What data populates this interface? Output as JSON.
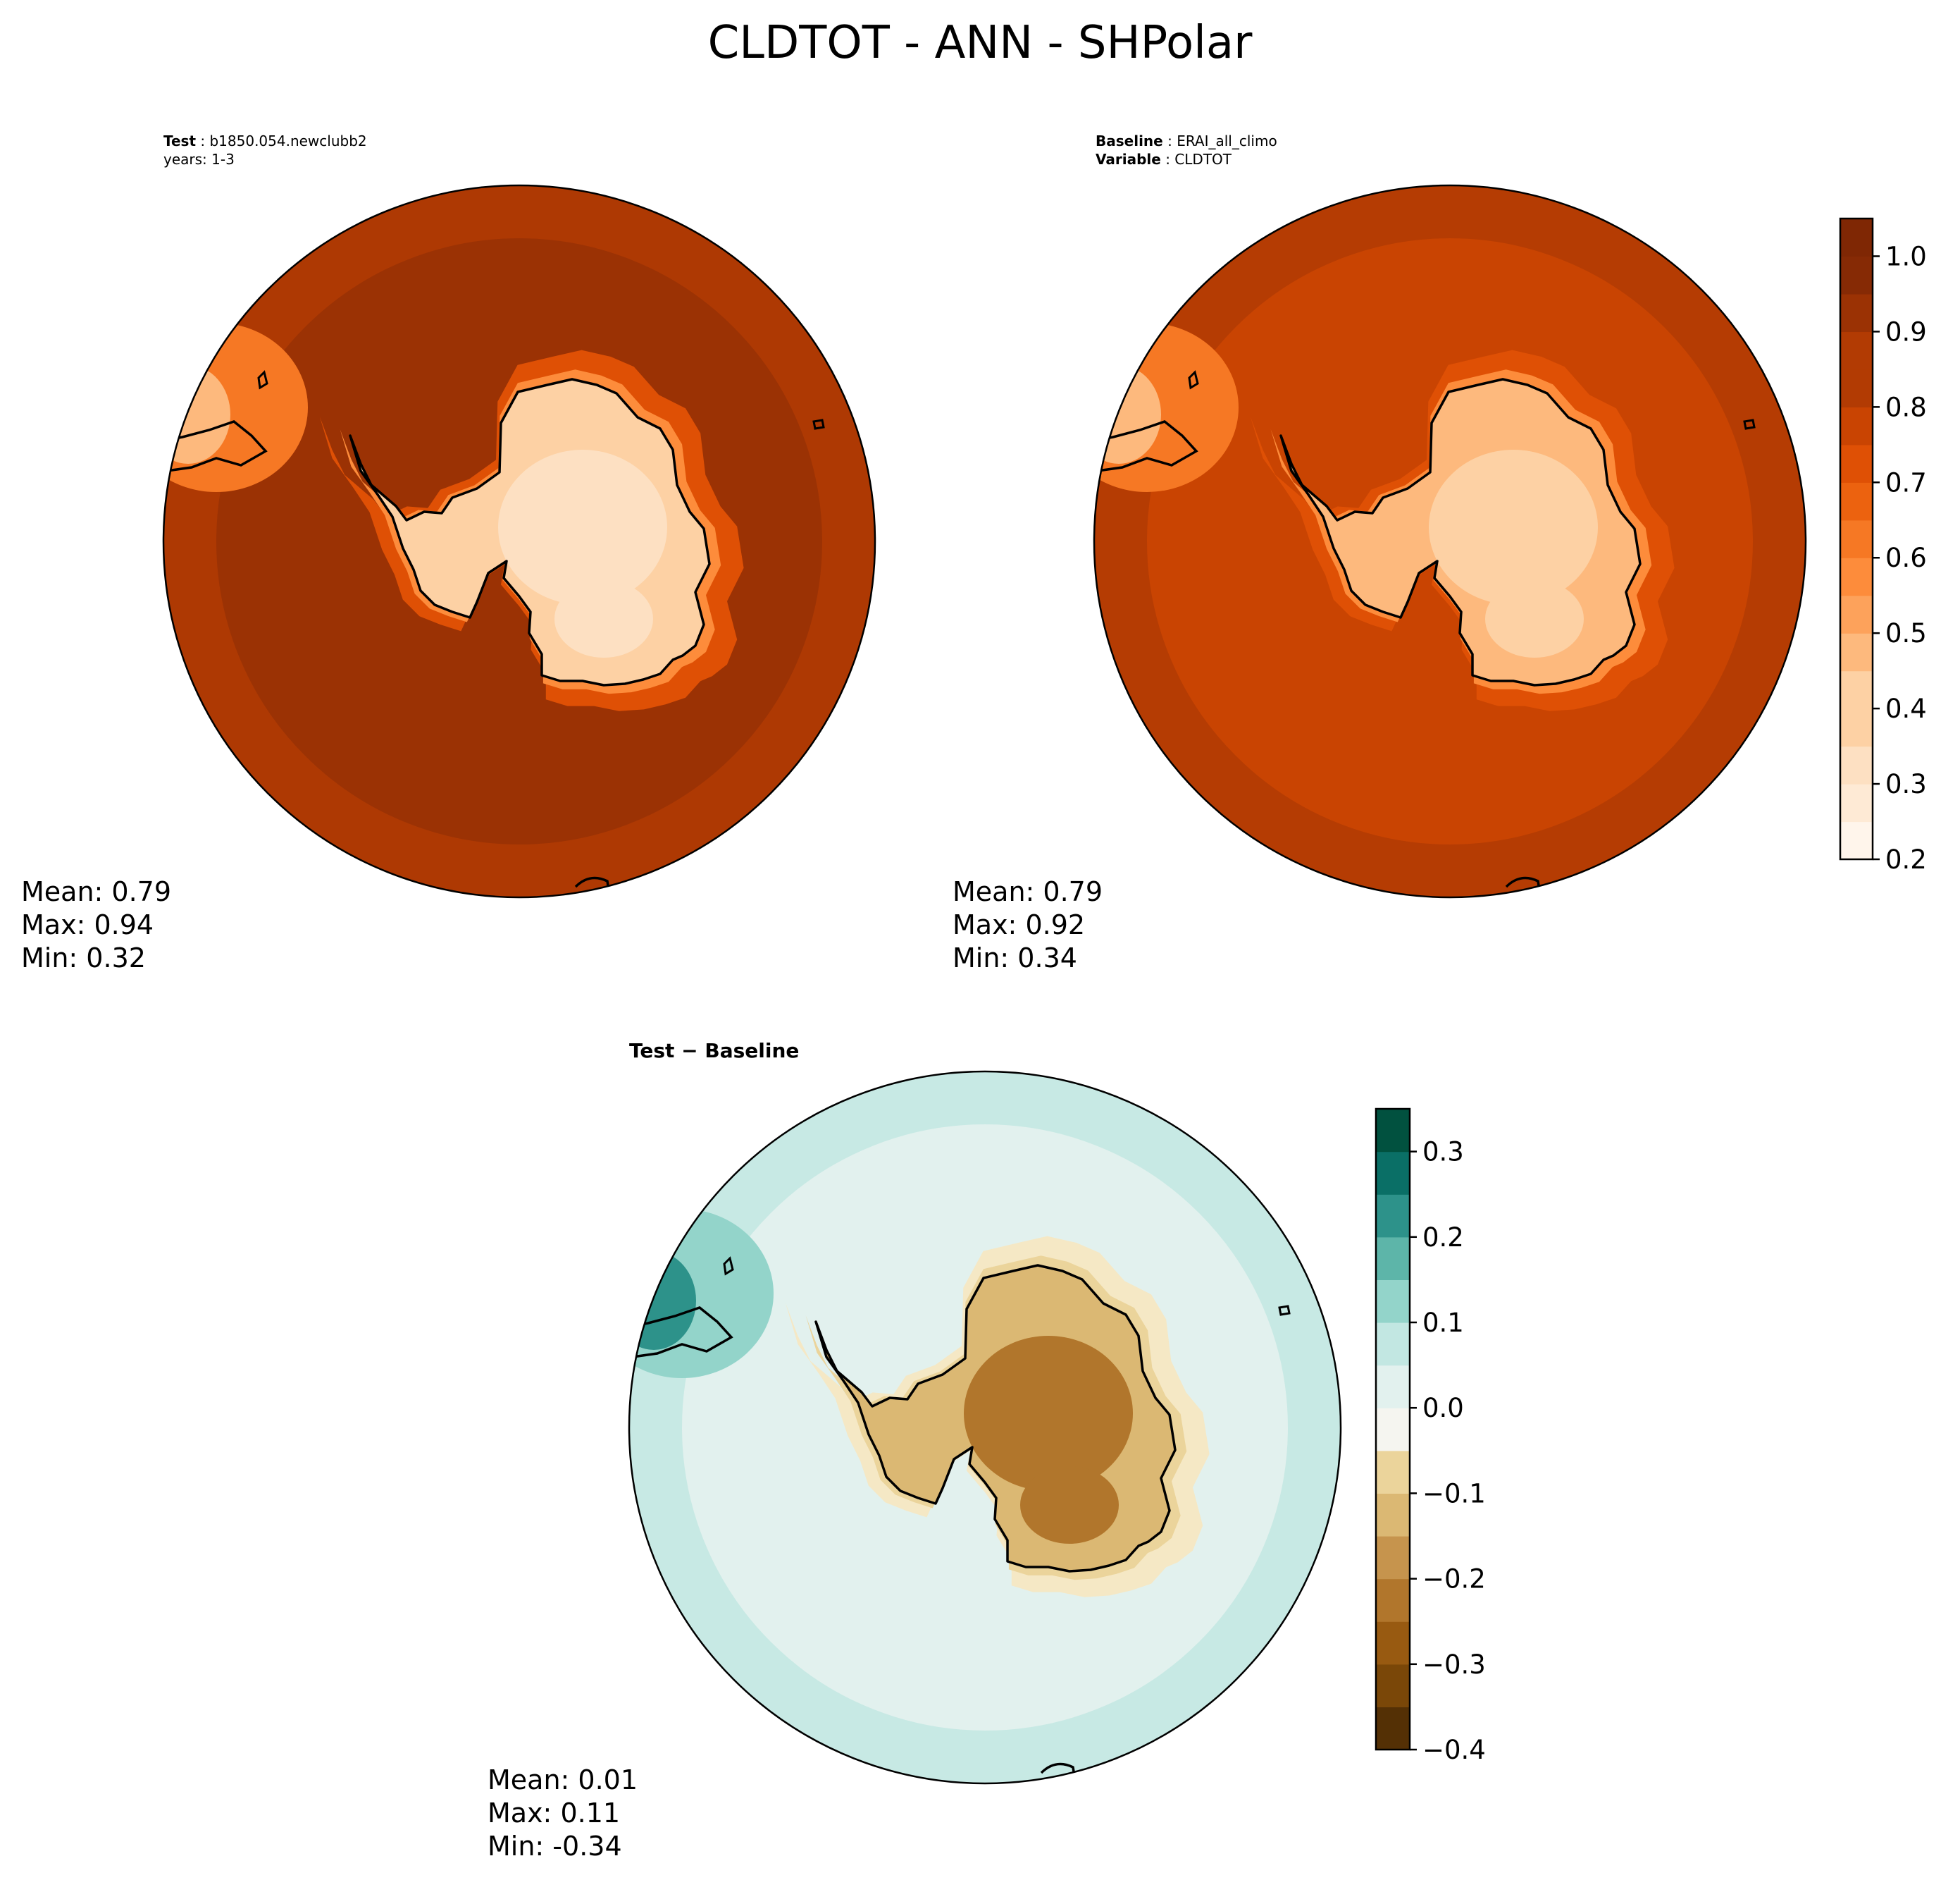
{
  "title": "CLDTOT - ANN - SHPolar",
  "panels": [
    {
      "id": "test",
      "info": [
        {
          "key": "Test",
          "value": "b1850.054.newclubb2"
        },
        {
          "key": "",
          "value": "years: 1-3"
        }
      ],
      "stats": {
        "mean": "Mean:  0.79",
        "max": "Max:  0.94",
        "min": "Min:  0.32"
      },
      "colormap": "Oranges",
      "ocean_level": 0.9,
      "band_level": 0.85,
      "coast_level": 0.76,
      "land_level": 0.4,
      "land_inner_level": 0.35,
      "ne_level": 0.6
    },
    {
      "id": "baseline",
      "info": [
        {
          "key": "Baseline",
          "value": "ERAI_all_climo"
        },
        {
          "key": "Variable",
          "value": "CLDTOT"
        }
      ],
      "stats": {
        "mean": "Mean:  0.79",
        "max": "Max:  0.92",
        "min": "Min:  0.34"
      },
      "colormap": "Oranges",
      "ocean_level": 0.82,
      "band_level": 0.88,
      "coast_level": 0.72,
      "land_level": 0.45,
      "land_inner_level": 0.38,
      "ne_level": 0.6
    },
    {
      "id": "diff",
      "info": [
        {
          "key": "Test − Baseline",
          "value": ""
        }
      ],
      "stats": {
        "mean": "Mean:  0.01",
        "max": "Max:  0.11",
        "min": "Min: -0.34"
      },
      "colormap": "BrBG",
      "ocean_level": 0.03,
      "band_level": 0.08,
      "coast_level": -0.03,
      "land_level": -0.12,
      "land_inner_level": -0.22,
      "ne_level": 0.15
    }
  ],
  "chart_data": [
    {
      "type": "heatmap",
      "name_shown": "Test",
      "projection": "south polar stereographic",
      "colorbar": {
        "levels": [
          0.2,
          0.25,
          0.3,
          0.35,
          0.4,
          0.45,
          0.5,
          0.55,
          0.6,
          0.65,
          0.7,
          0.75,
          0.8,
          0.85,
          0.9,
          0.95,
          1.0,
          1.05
        ],
        "ticks": [
          "0.2",
          "0.3",
          "0.4",
          "0.5",
          "0.6",
          "0.7",
          "0.8",
          "0.9",
          "1.0"
        ],
        "shared_with": "Baseline"
      },
      "mean": 0.79,
      "max": 0.94,
      "min": 0.32
    },
    {
      "type": "heatmap",
      "name_shown": "Baseline",
      "projection": "south polar stereographic",
      "mean": 0.79,
      "max": 0.92,
      "min": 0.34
    },
    {
      "type": "heatmap",
      "name_shown": "Test − Baseline",
      "projection": "south polar stereographic",
      "colorbar": {
        "levels": [
          -0.4,
          -0.35,
          -0.3,
          -0.25,
          -0.2,
          -0.15,
          -0.1,
          -0.05,
          0.0,
          0.05,
          0.1,
          0.15,
          0.2,
          0.25,
          0.3,
          0.35
        ],
        "ticks": [
          "0.3",
          "0.2",
          "0.1",
          "0.0",
          "−0.1",
          "−0.2",
          "−0.3",
          "−0.4"
        ]
      },
      "mean": 0.01,
      "max": 0.11,
      "min": -0.34
    }
  ],
  "colormaps": {
    "Oranges": [
      "#fff5eb",
      "#feead5",
      "#fde0c2",
      "#fdd1a4",
      "#fdb97d",
      "#fda25b",
      "#fd8c3b",
      "#f67824",
      "#ec620f",
      "#df5005",
      "#c94402",
      "#b23b03",
      "#9b3204",
      "#862a05",
      "#7f2704"
    ],
    "BrBG": [
      "#543005",
      "#7a4708",
      "#985a11",
      "#b1762c",
      "#c6944d",
      "#dbb873",
      "#ebd49b",
      "#f5e8c5",
      "#f5f5f0",
      "#e2f1ee",
      "#c2e7e2",
      "#93d4ca",
      "#5db5a9",
      "#2d928a",
      "#0a6f66",
      "#01513f"
    ]
  }
}
